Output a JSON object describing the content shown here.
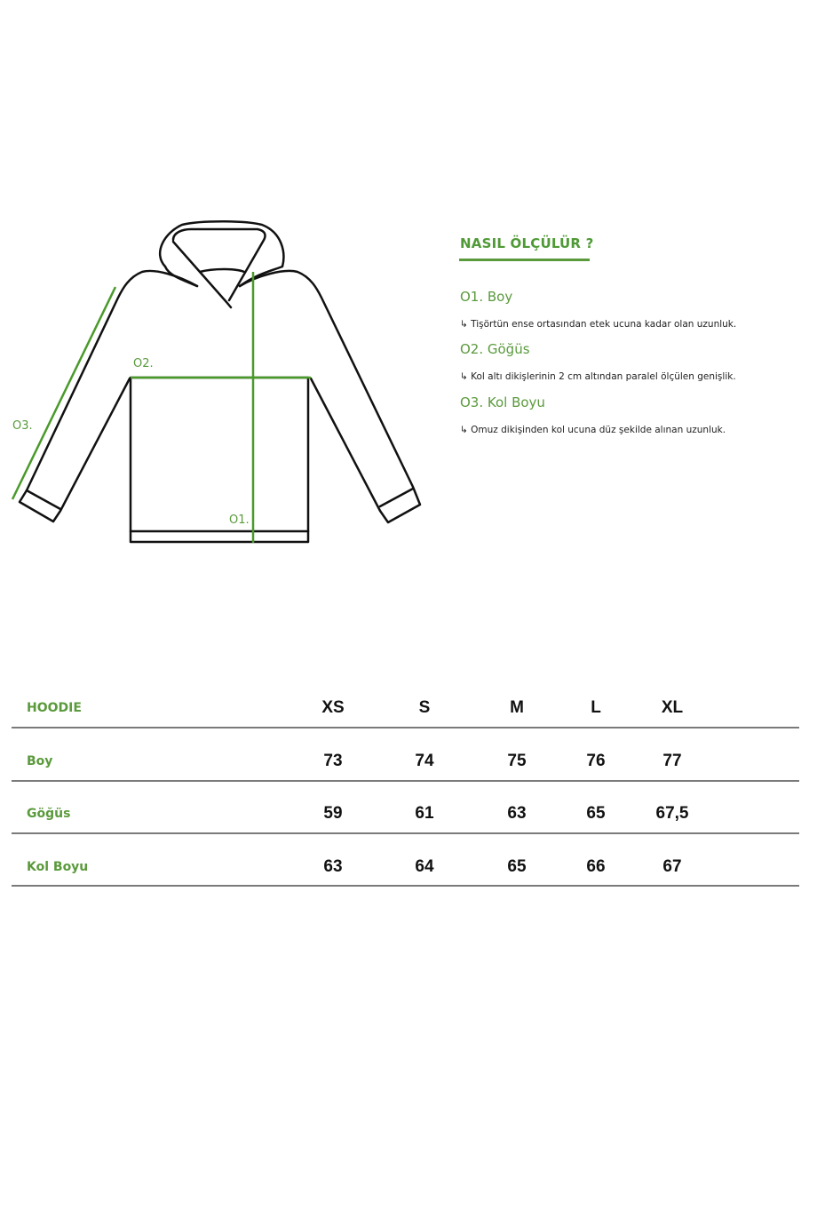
{
  "guide": {
    "title": "NASIL ÖLÇÜLÜR ?",
    "steps": [
      {
        "label": "O1. Boy",
        "desc": "↳ Tişörtün ense ortasından etek ucuna kadar olan uzunluk."
      },
      {
        "label": "O2. Göğüs",
        "desc": "↳ Kol altı dikişlerinin 2 cm altından paralel ölçülen genişlik."
      },
      {
        "label": "O3. Kol Boyu",
        "desc": "↳ Omuz dikişinden kol ucuna düz şekilde alınan uzunluk."
      }
    ]
  },
  "diagram": {
    "labels": {
      "o1": "O1.",
      "o2": "O2.",
      "o3": "O3."
    },
    "colors": {
      "outline": "#111111",
      "measure": "#4a9a2a"
    }
  },
  "table": {
    "header": "HOODIE",
    "sizes": [
      "XS",
      "S",
      "M",
      "L",
      "XL"
    ],
    "rows": [
      {
        "label": "Boy",
        "values": [
          "73",
          "74",
          "75",
          "76",
          "77"
        ]
      },
      {
        "label": "Göğüs",
        "values": [
          "59",
          "61",
          "63",
          "65",
          "67,5"
        ]
      },
      {
        "label": "Kol Boyu",
        "values": [
          "63",
          "64",
          "65",
          "66",
          "67"
        ]
      }
    ]
  }
}
